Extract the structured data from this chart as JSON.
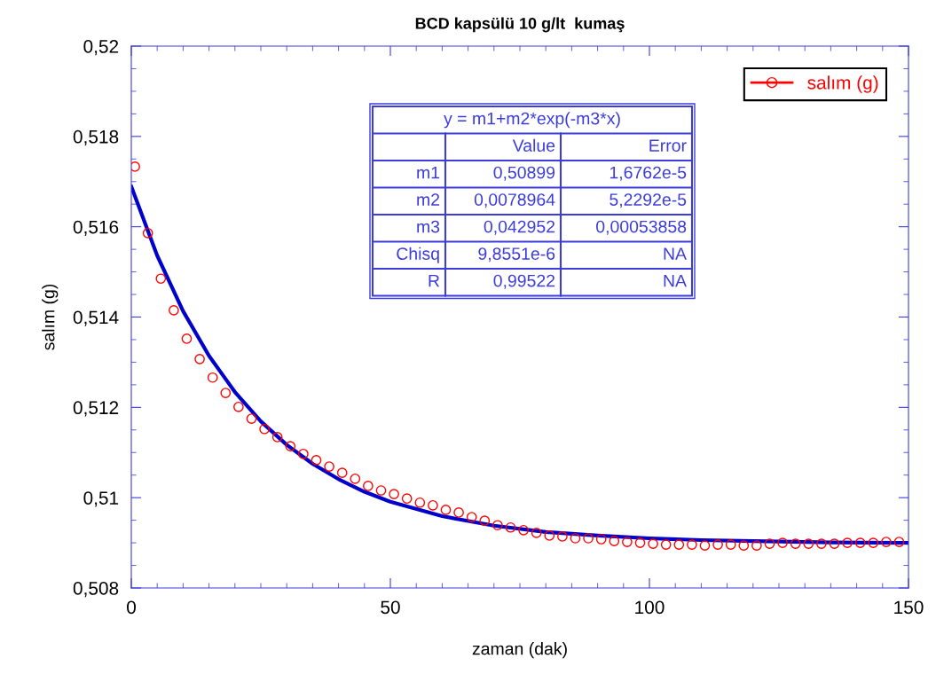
{
  "chart_data": {
    "type": "scatter",
    "title": "BCD kapsülü 10 g/lt  kumaş",
    "xlabel": "zaman (dak)",
    "ylabel": "salım (g)",
    "xlim": [
      0,
      150
    ],
    "xticks": [
      0,
      50,
      100,
      150
    ],
    "ylim": [
      0.508,
      0.52
    ],
    "yticks": [
      {
        "value": 0.508,
        "label": "0,508"
      },
      {
        "value": 0.51,
        "label": "0,51"
      },
      {
        "value": 0.512,
        "label": "0,512"
      },
      {
        "value": 0.514,
        "label": "0,514"
      },
      {
        "value": 0.516,
        "label": "0,516"
      },
      {
        "value": 0.518,
        "label": "0,518"
      },
      {
        "value": 0.52,
        "label": "0,52"
      }
    ],
    "grid": false,
    "legend": "top right",
    "series": [
      {
        "name": "salım (g)",
        "marker": "circle",
        "color": "#ff0000",
        "x": [
          0.7,
          3.2,
          5.7,
          8.2,
          10.7,
          13.2,
          15.7,
          18.2,
          20.7,
          23.2,
          25.7,
          28.2,
          30.7,
          33.2,
          35.7,
          38.2,
          40.7,
          43.2,
          45.7,
          48.2,
          50.7,
          53.2,
          55.7,
          58.2,
          60.7,
          63.2,
          65.7,
          68.2,
          70.7,
          73.2,
          75.7,
          78.2,
          80.7,
          83.2,
          85.7,
          88.2,
          90.7,
          93.2,
          95.7,
          98.2,
          100.7,
          103.2,
          105.7,
          108.2,
          110.7,
          113.2,
          115.7,
          118.2,
          120.7,
          123.2,
          125.7,
          128.2,
          130.7,
          133.2,
          135.7,
          138.2,
          140.7,
          143.2,
          145.7,
          148.2
        ],
        "values": [
          0.51733,
          0.51586,
          0.51485,
          0.51415,
          0.51352,
          0.51307,
          0.51266,
          0.51232,
          0.51201,
          0.51175,
          0.51152,
          0.51134,
          0.51114,
          0.51097,
          0.51083,
          0.51069,
          0.51055,
          0.51042,
          0.51026,
          0.51016,
          0.51008,
          0.50998,
          0.50989,
          0.50983,
          0.50973,
          0.50967,
          0.50957,
          0.50949,
          0.50939,
          0.50934,
          0.50928,
          0.50922,
          0.50916,
          0.50914,
          0.5091,
          0.5091,
          0.50908,
          0.50904,
          0.50902,
          0.509,
          0.50898,
          0.50896,
          0.50896,
          0.50896,
          0.50894,
          0.50896,
          0.50896,
          0.50894,
          0.50894,
          0.50898,
          0.509,
          0.50898,
          0.50898,
          0.50898,
          0.50898,
          0.509,
          0.509,
          0.509,
          0.50902,
          0.50902
        ]
      },
      {
        "type": "line",
        "color": "#0000cc",
        "x": [
          0,
          5,
          10,
          15,
          20,
          25,
          30,
          35,
          40,
          45,
          50,
          60,
          70,
          80,
          90,
          100,
          110,
          120,
          135,
          150
        ],
        "values": [
          0.51689,
          0.51536,
          0.51413,
          0.51314,
          0.51234,
          0.51169,
          0.51117,
          0.51075,
          0.51041,
          0.51013,
          0.50991,
          0.50959,
          0.50938,
          0.50924,
          0.50916,
          0.5091,
          0.50906,
          0.50904,
          0.50901,
          0.509
        ]
      }
    ],
    "annotations": [
      "y = m1+m2*exp(-m3*x)",
      "Value",
      "Error",
      "m1",
      "0,50899",
      "1,6762e-5",
      "m2",
      "0,0078964",
      "5,2292e-5",
      "m3",
      "0,042952",
      "0,00053858",
      "Chisq",
      "9,8551e-6",
      "NA",
      "R",
      "0,99522",
      "NA"
    ]
  }
}
